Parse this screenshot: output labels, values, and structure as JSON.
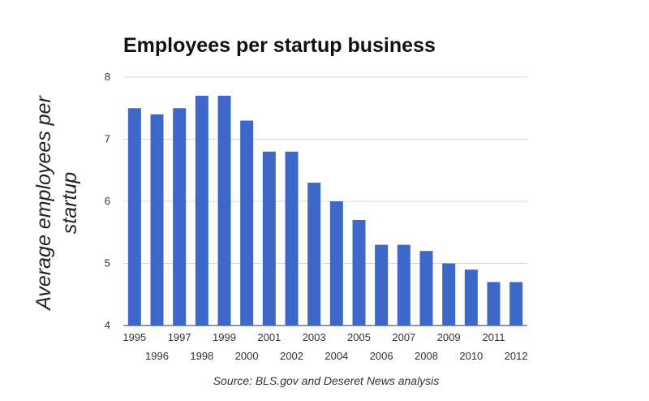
{
  "chart_data": {
    "type": "bar",
    "title": "Employees per startup business",
    "ylabel_lines": [
      "Average employees per",
      "startup"
    ],
    "xlabel": "",
    "categories": [
      "1995",
      "1996",
      "1997",
      "1998",
      "1999",
      "2000",
      "2001",
      "2002",
      "2003",
      "2004",
      "2005",
      "2006",
      "2007",
      "2008",
      "2009",
      "2010",
      "2011",
      "2012"
    ],
    "values": [
      7.5,
      7.4,
      7.5,
      7.7,
      7.7,
      7.3,
      6.8,
      6.8,
      6.3,
      6.0,
      5.7,
      5.3,
      5.3,
      5.2,
      5.0,
      4.9,
      4.7,
      4.7
    ],
    "ylim": [
      4,
      8
    ],
    "yticks": [
      "4",
      "5",
      "6",
      "7",
      "8"
    ],
    "grid": true,
    "bar_color": "#3d68c9",
    "source": "Source: BLS.gov and Deseret News analysis"
  }
}
